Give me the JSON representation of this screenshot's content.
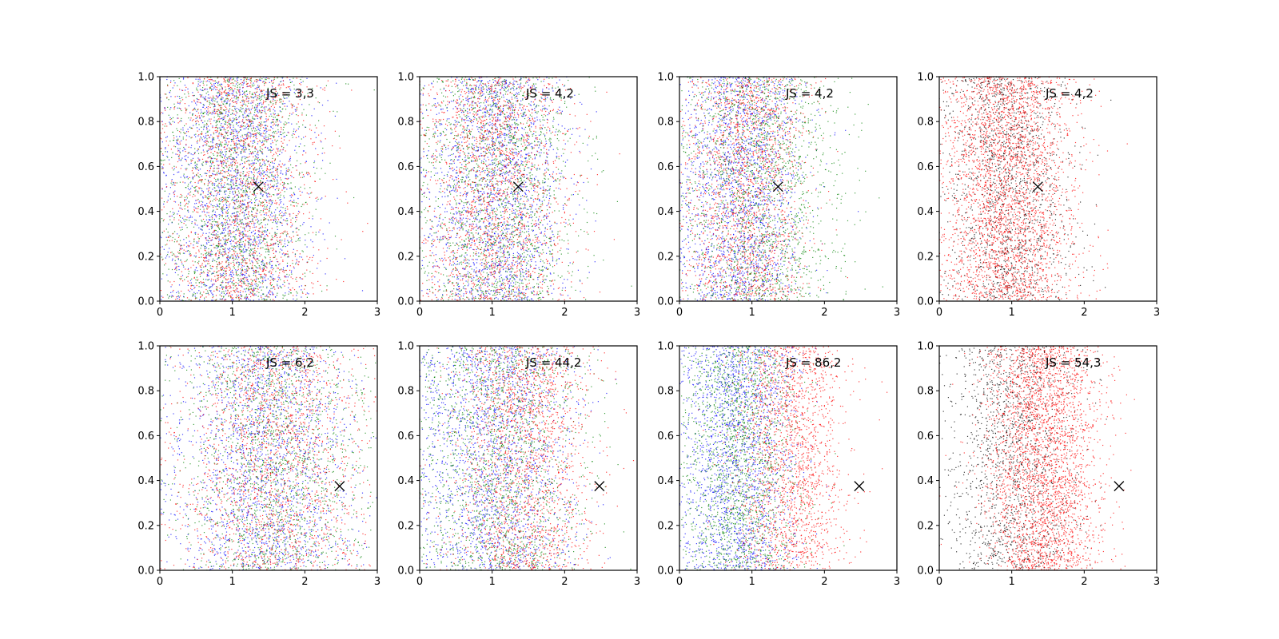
{
  "chart_data": [
    {
      "type": "scatter",
      "annotation": "JS = 3,3",
      "xlim": [
        0,
        3
      ],
      "ylim": [
        0,
        1
      ],
      "xticks": [
        "0",
        "1",
        "2",
        "3"
      ],
      "yticks": [
        "0.0",
        "0.2",
        "0.4",
        "0.6",
        "0.8",
        "1.0"
      ],
      "marker": {
        "x": 1.36,
        "y": 0.51
      },
      "series": [
        {
          "color": "#0000ff",
          "count": 1800,
          "x_center": 1.05,
          "x_spread": 0.5,
          "x_min": 0.0
        },
        {
          "color": "#008000",
          "count": 1800,
          "x_center": 1.05,
          "x_spread": 0.5,
          "x_min": 0.0
        },
        {
          "color": "#ff0000",
          "count": 1800,
          "x_center": 1.1,
          "x_spread": 0.52,
          "x_min": 0.0
        }
      ]
    },
    {
      "type": "scatter",
      "annotation": "JS = 4,2",
      "xlim": [
        0,
        3
      ],
      "ylim": [
        0,
        1
      ],
      "xticks": [
        "0",
        "1",
        "2",
        "3"
      ],
      "yticks": [
        "0.0",
        "0.2",
        "0.4",
        "0.6",
        "0.8",
        "1.0"
      ],
      "marker": {
        "x": 1.36,
        "y": 0.51
      },
      "series": [
        {
          "color": "#0000ff",
          "count": 1800,
          "x_center": 1.05,
          "x_spread": 0.5,
          "x_min": 0.0
        },
        {
          "color": "#008000",
          "count": 1800,
          "x_center": 1.1,
          "x_spread": 0.52,
          "x_min": 0.0
        },
        {
          "color": "#ff0000",
          "count": 1800,
          "x_center": 1.05,
          "x_spread": 0.5,
          "x_min": 0.0
        }
      ]
    },
    {
      "type": "scatter",
      "annotation": "JS = 4,2",
      "xlim": [
        0,
        3
      ],
      "ylim": [
        0,
        1
      ],
      "xticks": [
        "0",
        "1",
        "2",
        "3"
      ],
      "yticks": [
        "0.0",
        "0.2",
        "0.4",
        "0.6",
        "0.8",
        "1.0"
      ],
      "marker": {
        "x": 1.36,
        "y": 0.51
      },
      "series": [
        {
          "color": "#0000ff",
          "count": 1800,
          "x_center": 0.85,
          "x_spread": 0.42,
          "x_min": 0.0
        },
        {
          "color": "#ff0000",
          "count": 1800,
          "x_center": 0.9,
          "x_spread": 0.42,
          "x_min": 0.0
        },
        {
          "color": "#008000",
          "count": 1800,
          "x_center": 1.1,
          "x_spread": 0.55,
          "x_min": 0.0
        }
      ]
    },
    {
      "type": "scatter",
      "annotation": "JS = 4,2",
      "xlim": [
        0,
        3
      ],
      "ylim": [
        0,
        1
      ],
      "xticks": [
        "0",
        "1",
        "2",
        "3"
      ],
      "yticks": [
        "0.0",
        "0.2",
        "0.4",
        "0.6",
        "0.8",
        "1.0"
      ],
      "marker": {
        "x": 1.36,
        "y": 0.51
      },
      "series": [
        {
          "color": "#000000",
          "count": 1500,
          "x_center": 0.95,
          "x_spread": 0.42,
          "x_min": 0.0
        },
        {
          "color": "#ff0000",
          "count": 3000,
          "x_center": 0.95,
          "x_spread": 0.45,
          "x_min": 0.0
        }
      ]
    },
    {
      "type": "scatter",
      "annotation": "JS = 6,2",
      "xlim": [
        0,
        3
      ],
      "ylim": [
        0,
        1
      ],
      "xticks": [
        "0",
        "1",
        "2",
        "3"
      ],
      "yticks": [
        "0.0",
        "0.2",
        "0.4",
        "0.6",
        "0.8",
        "1.0"
      ],
      "marker": {
        "x": 2.48,
        "y": 0.375
      },
      "series": [
        {
          "color": "#0000ff",
          "count": 1800,
          "x_center": 1.45,
          "x_spread": 0.62,
          "x_min": 0.0
        },
        {
          "color": "#008000",
          "count": 1800,
          "x_center": 1.55,
          "x_spread": 0.62,
          "x_min": 0.0
        },
        {
          "color": "#ff0000",
          "count": 1800,
          "x_center": 1.55,
          "x_spread": 0.65,
          "x_min": 0.0
        }
      ]
    },
    {
      "type": "scatter",
      "annotation": "JS = 44,2",
      "xlim": [
        0,
        3
      ],
      "ylim": [
        0,
        1
      ],
      "xticks": [
        "0",
        "1",
        "2",
        "3"
      ],
      "yticks": [
        "0.0",
        "0.2",
        "0.4",
        "0.6",
        "0.8",
        "1.0"
      ],
      "marker": {
        "x": 2.48,
        "y": 0.375
      },
      "series": [
        {
          "color": "#0000ff",
          "count": 1800,
          "x_center": 1.05,
          "x_spread": 0.55,
          "x_min": 0.0
        },
        {
          "color": "#008000",
          "count": 1800,
          "x_center": 1.15,
          "x_spread": 0.55,
          "x_min": 0.0
        },
        {
          "color": "#ff0000",
          "count": 1800,
          "x_center": 1.45,
          "x_spread": 0.5,
          "x_min": 0.0
        }
      ]
    },
    {
      "type": "scatter",
      "annotation": "JS = 86,2",
      "xlim": [
        0,
        3
      ],
      "ylim": [
        0,
        1
      ],
      "xticks": [
        "0",
        "1",
        "2",
        "3"
      ],
      "yticks": [
        "0.0",
        "0.2",
        "0.4",
        "0.6",
        "0.8",
        "1.0"
      ],
      "marker": {
        "x": 2.48,
        "y": 0.375
      },
      "series": [
        {
          "color": "#0000ff",
          "count": 1800,
          "x_center": 0.8,
          "x_spread": 0.4,
          "x_min": 0.0
        },
        {
          "color": "#008000",
          "count": 1800,
          "x_center": 0.85,
          "x_spread": 0.4,
          "x_min": 0.0
        },
        {
          "color": "#ff0000",
          "count": 1800,
          "x_center": 1.55,
          "x_spread": 0.38,
          "x_min": 0.0
        }
      ]
    },
    {
      "type": "scatter",
      "annotation": "JS = 54,3",
      "xlim": [
        0,
        3
      ],
      "ylim": [
        0,
        1
      ],
      "xticks": [
        "0",
        "1",
        "2",
        "3"
      ],
      "yticks": [
        "0.0",
        "0.2",
        "0.4",
        "0.6",
        "0.8",
        "1.0"
      ],
      "marker": {
        "x": 2.48,
        "y": 0.375
      },
      "series": [
        {
          "color": "#000000",
          "count": 1500,
          "x_center": 1.0,
          "x_spread": 0.45,
          "x_min": 0.0
        },
        {
          "color": "#ff0000",
          "count": 3000,
          "x_center": 1.45,
          "x_spread": 0.4,
          "x_min": 0.0
        }
      ]
    }
  ]
}
